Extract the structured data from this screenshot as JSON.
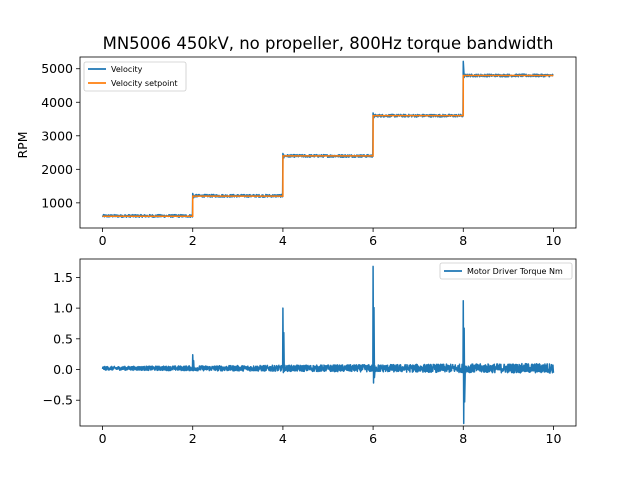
{
  "chart_data": [
    {
      "type": "line",
      "title": "MN5006 450kV, no propeller, 800Hz torque bandwidth",
      "xlabel": "",
      "ylabel": "RPM",
      "xlim": [
        -0.5,
        10.5
      ],
      "ylim": [
        250,
        5350
      ],
      "xticks": [
        0,
        2,
        4,
        6,
        8,
        10
      ],
      "yticks": [
        1000,
        2000,
        3000,
        4000,
        5000
      ],
      "grid": false,
      "legend_position": "top-left",
      "series": [
        {
          "name": "Velocity",
          "color": "#1f77b4",
          "noise_amplitude": 40,
          "steps": [
            {
              "x_start": 0,
              "x_end": 2,
              "y": 610
            },
            {
              "x_start": 2,
              "x_end": 4,
              "y": 1210
            },
            {
              "x_start": 4,
              "x_end": 6,
              "y": 2400
            },
            {
              "x_start": 6,
              "x_end": 8,
              "y": 3600
            },
            {
              "x_start": 8,
              "x_end": 10,
              "y": 4800
            }
          ],
          "overshoot_peaks": [
            {
              "x": 2,
              "y": 1280
            },
            {
              "x": 4,
              "y": 2470
            },
            {
              "x": 6,
              "y": 3680
            },
            {
              "x": 8,
              "y": 5220
            }
          ]
        },
        {
          "name": "Velocity setpoint",
          "color": "#ff7f0e",
          "steps": [
            {
              "x_start": 0,
              "x_end": 2,
              "y": 600
            },
            {
              "x_start": 2,
              "x_end": 4,
              "y": 1200
            },
            {
              "x_start": 4,
              "x_end": 6,
              "y": 2400
            },
            {
              "x_start": 6,
              "x_end": 8,
              "y": 3600
            },
            {
              "x_start": 8,
              "x_end": 10,
              "y": 4800
            }
          ]
        }
      ]
    },
    {
      "type": "line",
      "title": "",
      "xlabel": "",
      "ylabel": "",
      "xlim": [
        -0.5,
        10.5
      ],
      "ylim": [
        -0.92,
        1.8
      ],
      "xticks": [
        0,
        2,
        4,
        6,
        8,
        10
      ],
      "yticks": [
        -0.5,
        0.0,
        0.5,
        1.0,
        1.5
      ],
      "ytick_labels": [
        "−0.5",
        "0.0",
        "0.5",
        "1.0",
        "1.5"
      ],
      "grid": false,
      "legend_position": "top-right",
      "series": [
        {
          "name": "Motor Driver Torque Nm",
          "color": "#1f77b4",
          "baseline": 0.02,
          "spikes": [
            {
              "x": 2,
              "max": 0.24,
              "min": -0.02
            },
            {
              "x": 4,
              "max": 1.0,
              "min": -0.05
            },
            {
              "x": 6,
              "max": 1.68,
              "min": -0.22
            },
            {
              "x": 8,
              "max": 1.12,
              "min": -0.88
            }
          ]
        }
      ]
    }
  ]
}
